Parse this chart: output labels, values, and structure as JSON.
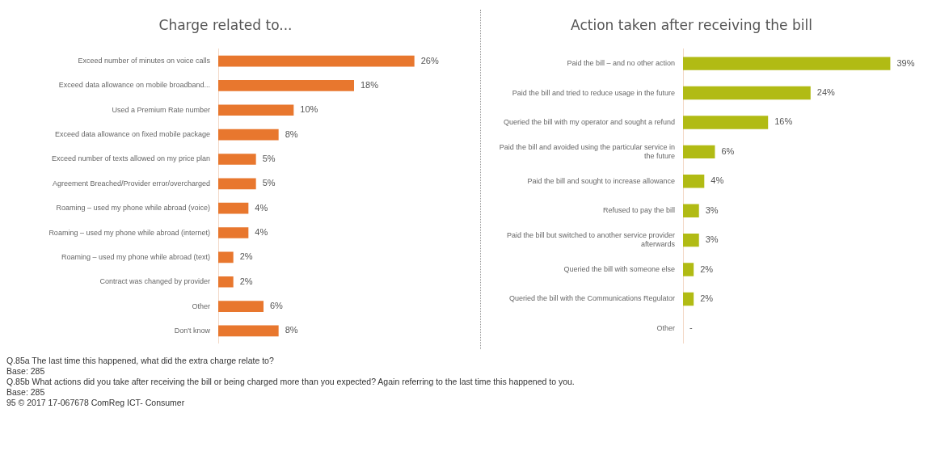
{
  "chart_data": [
    {
      "type": "bar",
      "orientation": "horizontal",
      "title": "Charge related to...",
      "categories": [
        "Exceed number of minutes on voice calls",
        "Exceed data allowance on mobile broadband...",
        "Used a Premium Rate number",
        "Exceed data allowance on fixed mobile package",
        "Exceed number of texts allowed on my price plan",
        "Agreement Breached/Provider error/overcharged",
        "Roaming – used my phone while abroad (voice)",
        "Roaming – used my phone while abroad (internet)",
        "Roaming – used my phone while abroad (text)",
        "Contract was changed by provider",
        "Other",
        "Don't know"
      ],
      "values": [
        26,
        18,
        10,
        8,
        5,
        5,
        4,
        4,
        2,
        2,
        6,
        8
      ],
      "value_labels": [
        "26%",
        "18%",
        "10%",
        "8%",
        "5%",
        "5%",
        "4%",
        "4%",
        "2%",
        "2%",
        "6%",
        "8%"
      ],
      "color": "#e8772e",
      "tick_labels": "y",
      "grid": false,
      "legend": false,
      "annotations": [
        "Q.85a  The last time this happened, what did the extra charge relate to?",
        "Base: 285"
      ]
    },
    {
      "type": "bar",
      "orientation": "horizontal",
      "title": "Action taken after receiving the bill",
      "categories": [
        "Paid the bill – and no other action",
        "Paid the bill and tried to reduce usage in the future",
        "Queried the bill with my operator and sought a refund",
        "Paid the bill and avoided using the particular service in the future",
        "Paid the bill and sought to increase allowance",
        "Refused to pay the bill",
        "Paid the bill but switched to another service provider afterwards",
        "Queried the bill with someone else",
        "Queried the bill with the Communications Regulator",
        "Other"
      ],
      "values": [
        39,
        24,
        16,
        6,
        4,
        3,
        3,
        2,
        2,
        null
      ],
      "value_labels": [
        "39%",
        "24%",
        "16%",
        "6%",
        "4%",
        "3%",
        "3%",
        "2%",
        "2%",
        "-"
      ],
      "color": "#b1bb14",
      "tick_labels": "y",
      "grid": false,
      "legend": false,
      "annotations": [
        "Q.85b  What actions did you take after receiving the bill or being charged more than you expected?  Again referring to the last time this happened to you.",
        "Base: 285",
        "95     © 2017     17-067678 ComReg ICT- Consumer"
      ]
    }
  ]
}
